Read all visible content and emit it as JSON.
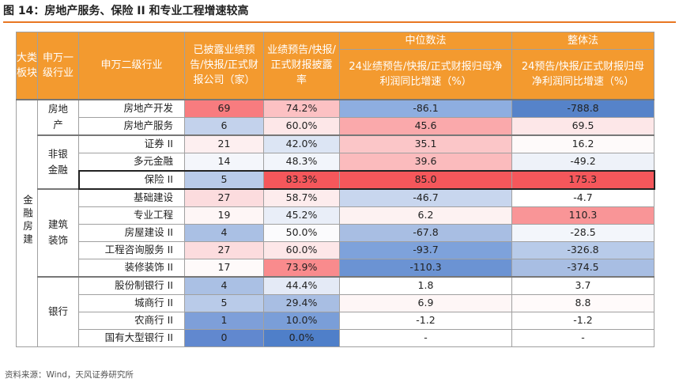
{
  "title": "图 14：房地产服务、保险 II 和专业工程增速较高",
  "source": "资料来源：Wind，天风证券研究所",
  "headers": {
    "big": "大类板块",
    "sw1": "申万一级行业",
    "sw2": "申万二级行业",
    "count": "已披露业绩预告/快报/正式财报公司（家）",
    "rate": "业绩预告/快报/正式财报披露率",
    "median": "中位数法",
    "median_sub": "24业绩预告/快报/正式财报归母净利润同比增速（%）",
    "overall": "整体法",
    "overall_sub": "24预告/快报/正式财报归母净利润同比增速（%）"
  },
  "big_category": "金融房建",
  "groups": [
    "房地产",
    "非银金融",
    "建筑装饰",
    "银行"
  ],
  "colors": {
    "header": "#f39a2f",
    "accent": "#e87722"
  },
  "rows": [
    {
      "ind": "房地产开发",
      "count": "69",
      "rate": "74.2%",
      "median": "-86.1",
      "overall": "-788.8",
      "c1": "#f87c7f",
      "c2": "#fcc1c3",
      "c3": "#8eaee0",
      "c4": "#5683c9"
    },
    {
      "ind": "房地产服务",
      "count": "6",
      "rate": "60.0%",
      "median": "45.6",
      "overall": "69.5",
      "c1": "#c3d2ec",
      "c2": "#fde7e8",
      "c3": "#faa9ab",
      "c4": "#fde7e8"
    },
    {
      "ind": "证券 II",
      "count": "21",
      "rate": "42.0%",
      "median": "35.1",
      "overall": "16.2",
      "c1": "#fdeff0",
      "c2": "#dce5f4",
      "c3": "#fbc6c8",
      "c4": "#fefafa"
    },
    {
      "ind": "多元金融",
      "count": "14",
      "rate": "48.3%",
      "median": "39.6",
      "overall": "-49.2",
      "c1": "#f4f6fb",
      "c2": "#f2f5fb",
      "c3": "#fbbbbd",
      "c4": "#eef2f9"
    },
    {
      "ind": "保险 II",
      "count": "5",
      "rate": "83.3%",
      "median": "85.0",
      "overall": "175.3",
      "c1": "#b9cbe9",
      "c2": "#f5575b",
      "c3": "#f5575b",
      "c4": "#f5575b"
    },
    {
      "ind": "基础建设",
      "count": "27",
      "rate": "58.7%",
      "median": "-46.7",
      "overall": "-4.7",
      "c1": "#fcdcde",
      "c2": "#fdeced",
      "c3": "#c8d6ee",
      "c4": "#ffffff"
    },
    {
      "ind": "专业工程",
      "count": "19",
      "rate": "45.2%",
      "median": "6.2",
      "overall": "110.3",
      "c1": "#fef6f6",
      "c2": "#e9eef8",
      "c3": "#fdf2f2",
      "c4": "#f99597"
    },
    {
      "ind": "房屋建设 II",
      "count": "4",
      "rate": "50.0%",
      "median": "-67.8",
      "overall": "-28.5",
      "c1": "#aac0e4",
      "c2": "#fbfbfd",
      "c3": "#a8bee3",
      "c4": "#f3f6fb"
    },
    {
      "ind": "工程咨询服务 II",
      "count": "27",
      "rate": "60.0%",
      "median": "-93.7",
      "overall": "-326.8",
      "c1": "#fcdcde",
      "c2": "#fde7e8",
      "c3": "#7ea2db",
      "c4": "#b8cbe9"
    },
    {
      "ind": "装修装饰 II",
      "count": "17",
      "rate": "73.9%",
      "median": "-110.3",
      "overall": "-374.5",
      "c1": "#fefafa",
      "c2": "#f98b8d",
      "c3": "#6b93d3",
      "c4": "#a8bee3"
    },
    {
      "ind": "股份制银行 II",
      "count": "4",
      "rate": "44.4%",
      "median": "1.8",
      "overall": "3.7",
      "c1": "#aac0e4",
      "c2": "#e4eaf6",
      "c3": "#ffffff",
      "c4": "#ffffff"
    },
    {
      "ind": "城商行 II",
      "count": "5",
      "rate": "29.4%",
      "median": "6.9",
      "overall": "8.8",
      "c1": "#b9cbe9",
      "c2": "#a8bee3",
      "c3": "#fef6f6",
      "c4": "#fffafa"
    },
    {
      "ind": "农商行 II",
      "count": "1",
      "rate": "10.0%",
      "median": "-1.2",
      "overall": "-1.2",
      "c1": "#7e9fd9",
      "c2": "#7a9ed8",
      "c3": "#ffffff",
      "c4": "#ffffff"
    },
    {
      "ind": "国有大型银行 II",
      "count": "0",
      "rate": "0.0%",
      "median": "-",
      "overall": "-",
      "c1": "#6188cf",
      "c2": "#4f7fc9",
      "c3": "#ffffff",
      "c4": "#ffffff"
    }
  ]
}
